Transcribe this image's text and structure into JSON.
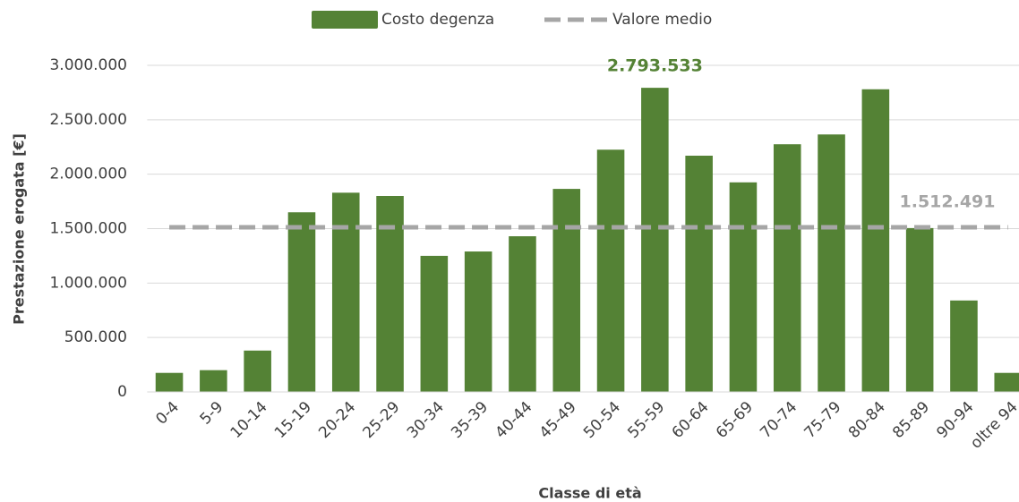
{
  "chart_data": {
    "type": "bar",
    "categories": [
      "0-4",
      "5-9",
      "10-14",
      "15-19",
      "20-24",
      "25-29",
      "30-34",
      "35-39",
      "40-44",
      "45-49",
      "50-54",
      "55-59",
      "60-64",
      "65-69",
      "70-74",
      "75-79",
      "80-84",
      "85-89",
      "90-94",
      "oltre 94"
    ],
    "series": [
      {
        "name": "Costo degenza",
        "color": "#548235",
        "values": [
          175000,
          200000,
          380000,
          1650000,
          1830000,
          1800000,
          1250000,
          1290000,
          1430000,
          1865000,
          2225000,
          2793533,
          2170000,
          1925000,
          2275000,
          2365000,
          2780000,
          1505000,
          840000,
          175000
        ],
        "value_labels": [
          null,
          null,
          null,
          null,
          null,
          null,
          null,
          null,
          null,
          null,
          null,
          "2.793.533",
          null,
          null,
          null,
          null,
          null,
          null,
          null,
          null
        ]
      }
    ],
    "mean": {
      "name": "Valore medio",
      "value": 1512491,
      "label": "1.512.491",
      "color": "#a6a6a6"
    },
    "xlabel": "Classe di età",
    "ylabel": "Prestazione erogata [€]",
    "ylim": [
      0,
      3000000
    ],
    "yticks": [
      0,
      {
        "value": 500000,
        "label": "500.000"
      },
      {
        "value": 1000000,
        "label": "1.000.000"
      },
      {
        "value": 1500000,
        "label": "1.500.000"
      },
      {
        "value": 2000000,
        "label": "2.000.000"
      },
      {
        "value": 2500000,
        "label": "2.500.000"
      },
      {
        "value": 3000000,
        "label": "3.000.000"
      }
    ],
    "grid": true,
    "legend": "top"
  }
}
